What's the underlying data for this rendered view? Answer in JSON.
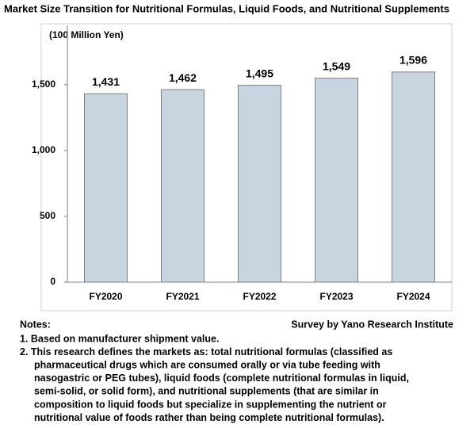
{
  "chart_data": {
    "type": "bar",
    "title": "Market Size Transition for Nutritional Formulas, Liquid Foods, and Nutritional Supplements",
    "y_label": "(100 Million Yen)",
    "categories": [
      "FY2020",
      "FY2021",
      "FY2022",
      "FY2023",
      "FY2024"
    ],
    "values": [
      1431,
      1462,
      1495,
      1549,
      1596
    ],
    "value_labels": [
      "1,431",
      "1,462",
      "1,495",
      "1,549",
      "1,596"
    ],
    "color": "#c9d4e1",
    "ylim": [
      0,
      1950
    ],
    "yticks": [
      0,
      500,
      {
        "value": 1000,
        "label": "1,000"
      },
      {
        "value": 1500,
        "label": "1,500"
      }
    ],
    "grid": false
  },
  "notes": {
    "heading": "Notes:",
    "source": "Survey by Yano Research Institute",
    "items": [
      [
        "1. Based on manufacturer shipment value."
      ],
      [
        "2. This research defines the markets as: total nutritional formulas (classified as",
        "pharmaceutical drugs which are consumed orally or via tube feeding with",
        "nasogastric or PEG tubes), liquid foods (complete nutritional formulas in liquid,",
        "semi-solid, or solid form), and nutritional supplements (that are similar in",
        "composition to liquid foods but specialize in supplementing the nutrient or",
        "nutritional value of foods rather than being complete nutritional formulas)."
      ]
    ]
  }
}
